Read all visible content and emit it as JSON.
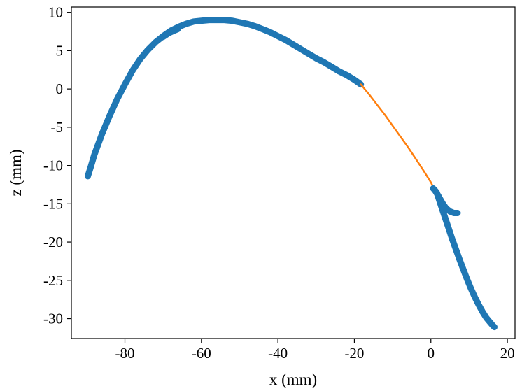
{
  "chart_data": {
    "type": "line",
    "title": "",
    "xlabel": "x (mm)",
    "ylabel": "z (mm)",
    "xlim": [
      -94,
      22
    ],
    "ylim": [
      -32.6,
      10.7
    ],
    "xticks": [
      -80,
      -60,
      -40,
      -20,
      0,
      20
    ],
    "yticks": [
      10,
      5,
      0,
      -5,
      -10,
      -15,
      -20,
      -25,
      -30
    ],
    "grid": false,
    "legend": "none",
    "colors": {
      "blue": "#1f77b4",
      "orange": "#ff7f0e"
    },
    "series": [
      {
        "color": "#1f77b4",
        "style": "thick-markers",
        "x": [
          -89.7,
          -89.0,
          -88.0,
          -86.0,
          -84.0,
          -82.0,
          -80.0,
          -78.0,
          -76.0,
          -74.0,
          -72.0,
          -70.0,
          -68.0,
          -66.0,
          -64.0,
          -62.0,
          -60.0,
          -58.0,
          -56.0,
          -54.0,
          -52.0,
          -50.0,
          -48.0,
          -46.0,
          -44.0,
          -42.0,
          -40.0,
          -38.0,
          -36.0,
          -34.0,
          -32.0,
          -30.0,
          -28.0,
          -26.0,
          -24.0,
          -22.0,
          -20.0,
          -18.3
        ],
        "y": [
          -11.4,
          -10.3,
          -8.6,
          -5.9,
          -3.5,
          -1.3,
          0.6,
          2.4,
          3.9,
          5.1,
          6.1,
          6.9,
          7.6,
          8.1,
          8.5,
          8.8,
          8.9,
          9.0,
          9.0,
          9.0,
          8.9,
          8.7,
          8.5,
          8.2,
          7.8,
          7.4,
          6.9,
          6.4,
          5.8,
          5.2,
          4.6,
          4.0,
          3.5,
          2.9,
          2.3,
          1.8,
          1.2,
          0.6
        ]
      },
      {
        "color": "#1f77b4",
        "style": "thick-markers",
        "x": [
          -70.0,
          -68.5,
          -67.2,
          -66.2
        ],
        "y": [
          6.8,
          7.3,
          7.6,
          7.8
        ]
      },
      {
        "color": "#ff7f0e",
        "style": "line",
        "x": [
          -18.3,
          -16.0,
          -14.0,
          -12.0,
          -10.0,
          -8.0,
          -6.0,
          -4.0,
          -2.0,
          0.0,
          0.6
        ],
        "y": [
          0.6,
          -0.8,
          -2.1,
          -3.4,
          -4.8,
          -6.2,
          -7.6,
          -9.1,
          -10.6,
          -12.2,
          -12.8
        ]
      },
      {
        "color": "#1f77b4",
        "style": "thick-markers",
        "x": [
          0.6,
          1.5,
          2.5,
          3.5,
          4.5,
          5.5,
          6.5,
          7.5,
          8.5,
          9.5,
          10.5,
          11.5,
          12.5,
          13.5,
          14.5,
          15.5,
          16.2,
          16.6
        ],
        "y": [
          -13.0,
          -13.5,
          -15.0,
          -16.5,
          -18.0,
          -19.5,
          -20.9,
          -22.3,
          -23.6,
          -24.9,
          -26.1,
          -27.2,
          -28.2,
          -29.1,
          -29.9,
          -30.5,
          -30.9,
          -31.1
        ]
      },
      {
        "color": "#1f77b4",
        "style": "thick-markers",
        "x": [
          1.0,
          2.0,
          3.0,
          4.0,
          5.0,
          6.0,
          7.0
        ],
        "y": [
          -13.2,
          -14.0,
          -14.9,
          -15.6,
          -16.0,
          -16.2,
          -16.2
        ]
      }
    ]
  }
}
